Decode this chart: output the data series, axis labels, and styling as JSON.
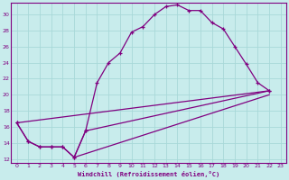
{
  "xlabel": "Windchill (Refroidissement éolien,°C)",
  "bg_color": "#c8ecec",
  "line_color": "#800080",
  "grid_color": "#a8d8d8",
  "xlim": [
    -0.5,
    23.5
  ],
  "ylim": [
    11.5,
    31.5
  ],
  "xticks": [
    0,
    1,
    2,
    3,
    4,
    5,
    6,
    7,
    8,
    9,
    10,
    11,
    12,
    13,
    14,
    15,
    16,
    17,
    18,
    19,
    20,
    21,
    22,
    23
  ],
  "yticks": [
    12,
    14,
    16,
    18,
    20,
    22,
    24,
    26,
    28,
    30
  ],
  "series": [
    {
      "x": [
        0,
        1,
        2,
        3,
        4,
        5,
        6,
        7,
        8,
        9,
        10,
        11,
        12,
        13,
        14,
        15,
        16,
        17,
        18,
        19,
        20,
        21,
        22
      ],
      "y": [
        16.5,
        14.2,
        13.5,
        13.5,
        13.5,
        12.2,
        15.5,
        21.5,
        24.0,
        25.2,
        27.8,
        28.5,
        30.0,
        31.0,
        31.2,
        30.5,
        30.5,
        29.0,
        28.2,
        26.0,
        23.8,
        21.5,
        20.5
      ],
      "marker": true
    },
    {
      "x": [
        0,
        1,
        2,
        3,
        4,
        5,
        6,
        22
      ],
      "y": [
        16.5,
        14.2,
        13.5,
        13.5,
        13.5,
        12.2,
        15.5,
        20.5
      ],
      "marker": true
    },
    {
      "x": [
        0,
        22
      ],
      "y": [
        16.5,
        20.5
      ],
      "marker": false
    },
    {
      "x": [
        5,
        22
      ],
      "y": [
        12.2,
        20.0
      ],
      "marker": false
    }
  ]
}
